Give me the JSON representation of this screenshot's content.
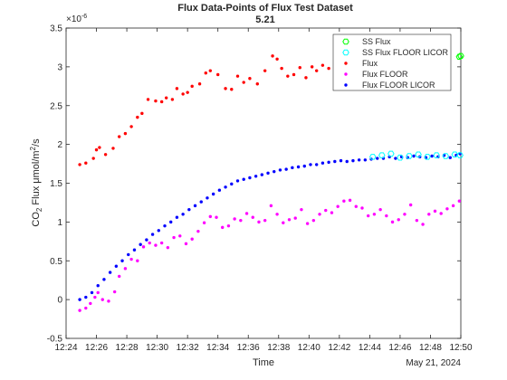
{
  "chart_data": {
    "type": "scatter",
    "title": "Flux Data-Points of Flux Test Dataset",
    "subtitle": "5.21",
    "xlabel": "Time",
    "xlabel_secondary": "May 21, 2024",
    "ylabel_prefix": "CO",
    "ylabel_sub": "2",
    "ylabel_mid": " Flux μmol/m",
    "ylabel_sup": "2",
    "ylabel_suffix": "/s",
    "y_exponent": "×10",
    "y_exponent_power": "-6",
    "xlim_minutes": [
      744,
      770
    ],
    "ylim": [
      -0.5,
      3.5
    ],
    "x_ticks": [
      {
        "minute": 744,
        "label": "12:24"
      },
      {
        "minute": 746,
        "label": "12:26"
      },
      {
        "minute": 748,
        "label": "12:28"
      },
      {
        "minute": 750,
        "label": "12:30"
      },
      {
        "minute": 752,
        "label": "12:32"
      },
      {
        "minute": 754,
        "label": "12:34"
      },
      {
        "minute": 756,
        "label": "12:36"
      },
      {
        "minute": 758,
        "label": "12:38"
      },
      {
        "minute": 760,
        "label": "12:40"
      },
      {
        "minute": 762,
        "label": "12:42"
      },
      {
        "minute": 764,
        "label": "12:44"
      },
      {
        "minute": 766,
        "label": "12:46"
      },
      {
        "minute": 768,
        "label": "12:48"
      },
      {
        "minute": 770,
        "label": "12:50"
      }
    ],
    "y_ticks": [
      {
        "value": -0.5,
        "label": "-0.5"
      },
      {
        "value": 0,
        "label": "0"
      },
      {
        "value": 0.5,
        "label": "0.5"
      },
      {
        "value": 1,
        "label": "1"
      },
      {
        "value": 1.5,
        "label": "1.5"
      },
      {
        "value": 2,
        "label": "2"
      },
      {
        "value": 2.5,
        "label": "2.5"
      },
      {
        "value": 3,
        "label": "3"
      },
      {
        "value": 3.5,
        "label": "3.5"
      }
    ],
    "grid": false,
    "legend_position": "top-right",
    "series": [
      {
        "name": "SS Flux",
        "color": "#00ff00",
        "marker": "open-hexagon",
        "x": [
          769.9,
          770.0
        ],
        "y": [
          3.13,
          3.14
        ]
      },
      {
        "name": "SS Flux FLOOR LICOR",
        "color": "#00ffff",
        "marker": "open-hexagon",
        "x": [
          764.2,
          764.8,
          765.4,
          766.0,
          766.6,
          767.2,
          767.8,
          768.4,
          769.0,
          769.6,
          769.95
        ],
        "y": [
          1.84,
          1.86,
          1.88,
          1.83,
          1.85,
          1.87,
          1.84,
          1.86,
          1.85,
          1.87,
          1.86
        ]
      },
      {
        "name": "Flux",
        "color": "#ff0000",
        "marker": "dot",
        "x": [
          744.9,
          745.3,
          745.8,
          746.0,
          746.2,
          746.6,
          747.1,
          747.5,
          747.9,
          748.3,
          748.7,
          749.0,
          749.4,
          749.9,
          750.3,
          750.6,
          751.0,
          751.3,
          751.7,
          752.0,
          752.3,
          752.8,
          753.2,
          753.5,
          754.0,
          754.5,
          754.9,
          755.3,
          755.7,
          756.1,
          756.6,
          757.1,
          757.6,
          757.9,
          758.2,
          758.6,
          759.0,
          759.4,
          759.8,
          760.2,
          760.5,
          760.9,
          761.3,
          761.7,
          762.0,
          762.3,
          762.6
        ],
        "y": [
          1.74,
          1.76,
          1.82,
          1.93,
          1.96,
          1.87,
          1.95,
          2.1,
          2.14,
          2.23,
          2.35,
          2.4,
          2.58,
          2.56,
          2.55,
          2.6,
          2.58,
          2.72,
          2.65,
          2.67,
          2.75,
          2.78,
          2.92,
          2.95,
          2.9,
          2.72,
          2.71,
          2.88,
          2.8,
          2.85,
          2.78,
          2.95,
          3.14,
          3.1,
          2.98,
          2.88,
          2.9,
          2.99,
          2.86,
          3.0,
          2.95,
          3.02,
          2.98,
          2.95,
          3.05,
          3.1,
          3.12
        ]
      },
      {
        "name": "Flux FLOOR",
        "color": "#ff00ff",
        "marker": "dot",
        "x": [
          744.9,
          745.3,
          745.6,
          745.9,
          746.1,
          746.4,
          746.8,
          747.2,
          747.5,
          747.9,
          748.3,
          748.7,
          749.1,
          749.5,
          749.9,
          750.3,
          750.7,
          751.1,
          751.5,
          751.9,
          752.3,
          752.7,
          753.1,
          753.5,
          753.9,
          754.3,
          754.7,
          755.1,
          755.5,
          755.9,
          756.3,
          756.7,
          757.1,
          757.5,
          757.9,
          758.3,
          758.7,
          759.1,
          759.5,
          759.9,
          760.3,
          760.7,
          761.1,
          761.5,
          761.9,
          762.3,
          762.7,
          763.1,
          763.5,
          763.9,
          764.3,
          764.7,
          765.1,
          765.5,
          765.9,
          766.3,
          766.7,
          767.1,
          767.5,
          767.9,
          768.3,
          768.7,
          769.1,
          769.5,
          769.9
        ],
        "y": [
          -0.14,
          -0.11,
          -0.05,
          0.03,
          0.09,
          0.0,
          -0.02,
          0.1,
          0.3,
          0.4,
          0.52,
          0.5,
          0.68,
          0.73,
          0.7,
          0.73,
          0.67,
          0.8,
          0.82,
          0.72,
          0.78,
          0.88,
          0.99,
          1.07,
          1.06,
          0.93,
          0.95,
          1.04,
          1.02,
          1.11,
          1.06,
          1.0,
          1.02,
          1.21,
          1.1,
          0.99,
          1.03,
          1.05,
          1.16,
          0.98,
          1.02,
          1.1,
          1.15,
          1.12,
          1.2,
          1.27,
          1.28,
          1.2,
          1.18,
          1.08,
          1.1,
          1.16,
          1.08,
          1.0,
          1.03,
          1.1,
          1.22,
          1.02,
          0.97,
          1.1,
          1.14,
          1.11,
          1.17,
          1.21,
          1.27
        ]
      },
      {
        "name": "Flux FLOOR LICOR",
        "color": "#0000ff",
        "marker": "dot",
        "x": [
          744.9,
          745.3,
          745.7,
          746.1,
          746.5,
          746.9,
          747.3,
          747.7,
          748.1,
          748.5,
          748.9,
          749.3,
          749.7,
          750.1,
          750.5,
          750.9,
          751.3,
          751.7,
          752.1,
          752.5,
          752.9,
          753.3,
          753.7,
          754.1,
          754.5,
          754.9,
          755.3,
          755.7,
          756.1,
          756.5,
          756.9,
          757.3,
          757.7,
          758.1,
          758.5,
          758.9,
          759.3,
          759.7,
          760.1,
          760.5,
          760.9,
          761.3,
          761.7,
          762.1,
          762.5,
          762.9,
          763.3,
          763.7,
          764.1,
          764.5,
          764.9,
          765.3,
          765.7,
          766.1,
          766.5,
          766.9,
          767.3,
          767.7,
          768.1,
          768.5,
          768.9,
          769.3,
          769.7,
          769.95
        ],
        "y": [
          0.0,
          0.03,
          0.09,
          0.18,
          0.26,
          0.35,
          0.43,
          0.5,
          0.58,
          0.64,
          0.71,
          0.77,
          0.84,
          0.89,
          0.95,
          1.0,
          1.06,
          1.1,
          1.16,
          1.21,
          1.26,
          1.31,
          1.36,
          1.41,
          1.45,
          1.49,
          1.53,
          1.55,
          1.57,
          1.59,
          1.61,
          1.63,
          1.65,
          1.67,
          1.68,
          1.7,
          1.71,
          1.72,
          1.74,
          1.74,
          1.76,
          1.77,
          1.78,
          1.79,
          1.78,
          1.79,
          1.8,
          1.8,
          1.81,
          1.82,
          1.82,
          1.84,
          1.82,
          1.84,
          1.83,
          1.85,
          1.84,
          1.83,
          1.85,
          1.84,
          1.86,
          1.83,
          1.86,
          1.88
        ]
      }
    ]
  }
}
